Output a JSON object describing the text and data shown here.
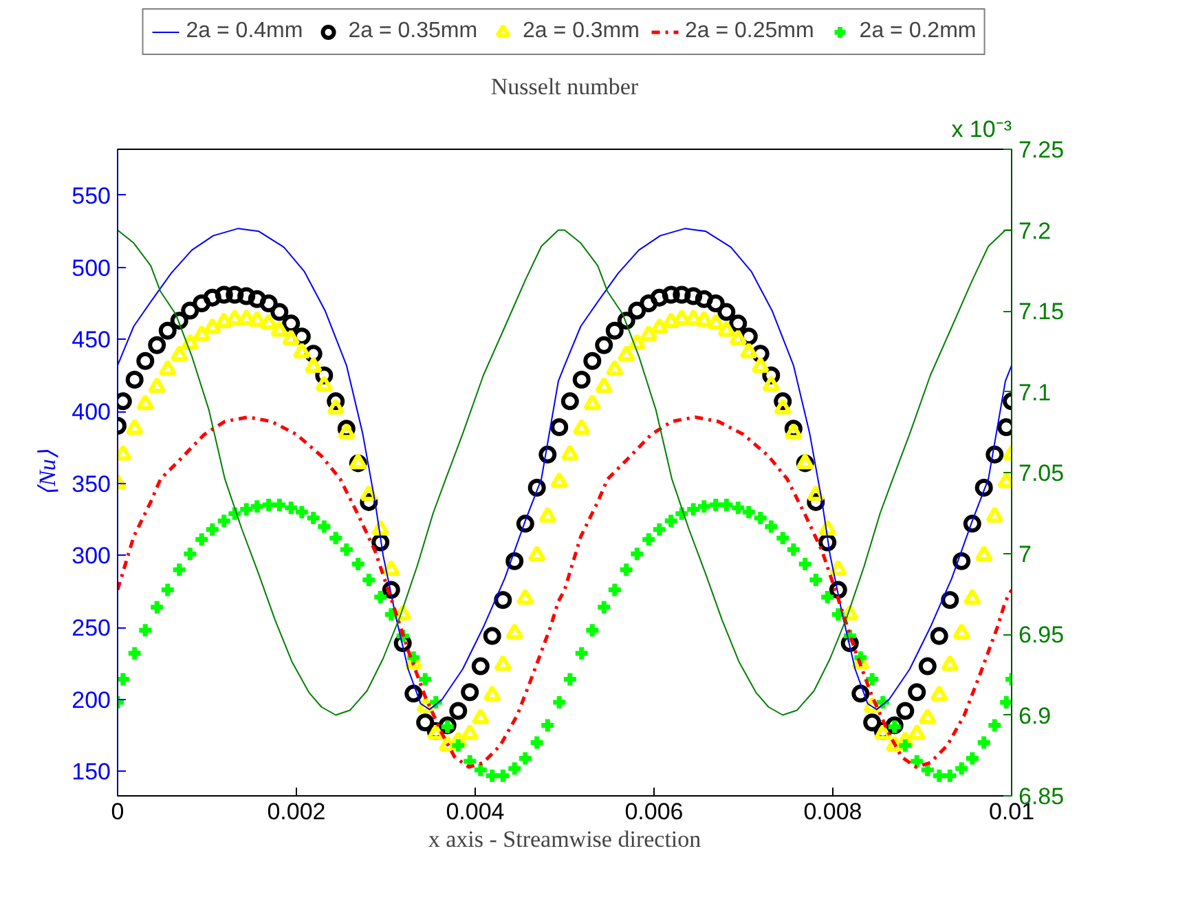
{
  "chart_data": {
    "type": "scatter",
    "title": "Nusselt number",
    "xlabel": "x axis - Streamwise direction",
    "ylabel": "⟨Nu⟩",
    "annotations": [
      "x 10⁻³"
    ],
    "xlim": [
      0,
      0.01
    ],
    "xticks": [
      0,
      0.002,
      0.004,
      0.006,
      0.008,
      0.01
    ],
    "ylim": [
      133,
      582
    ],
    "yticks": [
      150,
      200,
      250,
      300,
      350,
      400,
      450,
      500,
      550
    ],
    "y2lim": [
      6.85,
      7.25
    ],
    "y2ticks": [
      6.85,
      6.9,
      6.95,
      7,
      7.05,
      7.1,
      7.15,
      7.2,
      7.25
    ],
    "legend": "top",
    "grid": false,
    "x": [
      0,
      6e-05,
      0.00019,
      0.00031,
      0.00044,
      0.00056,
      0.00069,
      0.00081,
      0.00094,
      0.00106,
      0.00119,
      0.00131,
      0.00144,
      0.00156,
      0.00169,
      0.00181,
      0.00194,
      0.00206,
      0.00219,
      0.00231,
      0.00244,
      0.00256,
      0.00269,
      0.00281,
      0.00294,
      0.00306,
      0.00319,
      0.00331,
      0.00344,
      0.00356,
      0.00369,
      0.00381,
      0.00394,
      0.00406,
      0.00419,
      0.00431,
      0.00444,
      0.00456,
      0.00469,
      0.00481,
      0.00494,
      0.00506,
      0.00519,
      0.00531,
      0.00544,
      0.00556,
      0.00569,
      0.00581,
      0.00594,
      0.00606,
      0.00619,
      0.00631,
      0.00644,
      0.00656,
      0.00669,
      0.00681,
      0.00694,
      0.00706,
      0.00719,
      0.00731,
      0.00744,
      0.00756,
      0.00769,
      0.00781,
      0.00794,
      0.00806,
      0.00819,
      0.00831,
      0.00844,
      0.00856,
      0.00869,
      0.00881,
      0.00894,
      0.00906,
      0.00919,
      0.00931,
      0.00944,
      0.00956,
      0.00969,
      0.00981,
      0.00994,
      0.01
    ],
    "series": [
      {
        "name": "2a = 0.4mm",
        "type": "line",
        "line_style": "solid",
        "color": "#0000ff",
        "x": [
          0,
          0.00018,
          0.00037,
          0.0006,
          0.00083,
          0.00107,
          0.00135,
          0.00158,
          0.00186,
          0.00209,
          0.00232,
          0.00256,
          0.00274,
          0.00288,
          0.00297,
          0.00311,
          0.00325,
          0.00339,
          0.00349,
          0.00363,
          0.00386,
          0.00409,
          0.00433,
          0.00456,
          0.00474,
          0.00493,
          0.005,
          0.00518,
          0.00537,
          0.0056,
          0.00583,
          0.00607,
          0.00635,
          0.00658,
          0.00686,
          0.00709,
          0.00732,
          0.00756,
          0.00774,
          0.00788,
          0.00797,
          0.00811,
          0.00825,
          0.00839,
          0.00849,
          0.00863,
          0.00886,
          0.00909,
          0.00933,
          0.00956,
          0.00974,
          0.00993,
          0.01
        ],
        "values": [
          432,
          459,
          476,
          496,
          512,
          522,
          527,
          525,
          514,
          497,
          470,
          432,
          385,
          337,
          300,
          258,
          221,
          197,
          193,
          200,
          221,
          250,
          284,
          324,
          353,
          421,
          432,
          459,
          476,
          496,
          512,
          522,
          527,
          525,
          514,
          497,
          470,
          432,
          385,
          337,
          300,
          258,
          221,
          197,
          193,
          200,
          221,
          250,
          284,
          324,
          353,
          421,
          432
        ]
      },
      {
        "name": "2a = 0.35mm",
        "marker": "circle",
        "color": "#000000",
        "values": [
          390,
          407,
          422,
          435,
          446,
          456,
          463,
          470,
          475,
          479,
          481,
          481,
          480,
          478,
          475,
          469,
          461,
          452,
          440,
          425,
          407,
          388,
          364,
          337,
          309,
          276,
          239,
          204,
          184,
          178,
          182,
          192,
          205,
          223,
          244,
          269,
          296,
          322,
          347,
          370,
          389,
          407,
          422,
          435,
          446,
          456,
          463,
          470,
          475,
          479,
          481,
          481,
          480,
          478,
          475,
          469,
          461,
          452,
          440,
          425,
          407,
          388,
          364,
          337,
          309,
          276,
          239,
          204,
          184,
          178,
          182,
          192,
          205,
          223,
          244,
          269,
          296,
          322,
          347,
          370,
          389,
          407
        ]
      },
      {
        "name": "2a = 0.3mm",
        "marker": "triangle",
        "color": "#ffff00",
        "values": [
          350,
          370,
          388,
          405,
          417,
          429,
          439,
          447,
          453,
          458,
          462,
          464,
          464,
          463,
          461,
          456,
          450,
          441,
          431,
          418,
          402,
          385,
          364,
          342,
          318,
          290,
          259,
          225,
          195,
          176,
          168,
          171,
          176,
          187,
          203,
          224,
          246,
          270,
          300,
          327,
          351,
          370,
          388,
          405,
          417,
          429,
          439,
          447,
          453,
          458,
          462,
          464,
          464,
          463,
          461,
          456,
          450,
          441,
          431,
          418,
          402,
          385,
          364,
          342,
          318,
          290,
          259,
          225,
          195,
          176,
          168,
          171,
          176,
          187,
          203,
          224,
          246,
          270,
          300,
          327,
          351,
          370
        ]
      },
      {
        "name": "2a = 0.25mm",
        "type": "line",
        "line_style": "dashdot",
        "color": "#ff0000",
        "x": [
          0,
          0.00018,
          0.00037,
          0.00048,
          0.00069,
          0.00097,
          0.0012,
          0.00146,
          0.00172,
          0.002,
          0.00228,
          0.00249,
          0.0027,
          0.00288,
          0.00307,
          0.00325,
          0.00344,
          0.00363,
          0.00377,
          0.00393,
          0.00409,
          0.00428,
          0.00447,
          0.00465,
          0.00484,
          0.00493,
          0.005,
          0.00518,
          0.00537,
          0.00548,
          0.00569,
          0.00597,
          0.0062,
          0.00646,
          0.00672,
          0.007,
          0.00728,
          0.00749,
          0.0077,
          0.00788,
          0.00807,
          0.00825,
          0.00844,
          0.00863,
          0.00877,
          0.00893,
          0.00909,
          0.00928,
          0.00947,
          0.00965,
          0.00984,
          0.00993,
          0.01
        ],
        "values": [
          276,
          313,
          337,
          353,
          366,
          384,
          393,
          396,
          393,
          384,
          369,
          353,
          327,
          303,
          268,
          234,
          202,
          176,
          160,
          153,
          156,
          168,
          189,
          218,
          250,
          268,
          276,
          313,
          337,
          353,
          366,
          384,
          393,
          396,
          393,
          384,
          369,
          353,
          327,
          303,
          268,
          234,
          202,
          176,
          160,
          153,
          156,
          168,
          189,
          218,
          250,
          268,
          276
        ]
      },
      {
        "name": "2a = 0.2mm",
        "marker": "cross",
        "color": "#00ff00",
        "values": [
          198,
          214,
          232,
          248,
          264,
          276,
          290,
          301,
          311,
          318,
          324,
          329,
          332,
          334,
          335,
          335,
          333,
          330,
          326,
          320,
          312,
          304,
          294,
          283,
          271,
          259,
          244,
          229,
          214,
          198,
          181,
          168,
          157,
          151,
          147,
          147,
          152,
          159,
          170,
          182,
          198,
          214,
          232,
          248,
          264,
          276,
          290,
          301,
          311,
          318,
          324,
          329,
          332,
          334,
          335,
          335,
          333,
          330,
          326,
          320,
          312,
          304,
          294,
          283,
          271,
          259,
          244,
          229,
          214,
          198,
          181,
          168,
          157,
          151,
          147,
          147,
          152,
          159,
          170,
          182,
          198,
          214
        ]
      },
      {
        "type": "line",
        "line_style": "solid",
        "axis": "y2",
        "color": "#008000",
        "x": [
          0,
          0.00018,
          0.00037,
          0.00048,
          0.00065,
          0.00083,
          0.00102,
          0.0012,
          0.00139,
          0.00158,
          0.00176,
          0.00195,
          0.00214,
          0.00228,
          0.00244,
          0.0026,
          0.00279,
          0.00297,
          0.00316,
          0.00335,
          0.00353,
          0.00367,
          0.00386,
          0.00409,
          0.00433,
          0.00456,
          0.00474,
          0.00493,
          0.005,
          0.00518,
          0.00537,
          0.00548,
          0.00565,
          0.00583,
          0.00602,
          0.0062,
          0.00639,
          0.00658,
          0.00676,
          0.00695,
          0.00714,
          0.00728,
          0.00744,
          0.0076,
          0.00779,
          0.00797,
          0.00816,
          0.00835,
          0.00853,
          0.00867,
          0.00886,
          0.00909,
          0.00933,
          0.00956,
          0.00974,
          0.00993,
          0.01
        ],
        "values": [
          7.2,
          7.192,
          7.178,
          7.162,
          7.148,
          7.122,
          7.089,
          7.046,
          7.015,
          6.987,
          6.959,
          6.933,
          6.914,
          6.905,
          6.9,
          6.903,
          6.915,
          6.935,
          6.961,
          6.992,
          7.025,
          7.046,
          7.074,
          7.11,
          7.14,
          7.169,
          7.19,
          7.2,
          7.2,
          7.192,
          7.178,
          7.162,
          7.148,
          7.122,
          7.089,
          7.046,
          7.015,
          6.987,
          6.959,
          6.933,
          6.914,
          6.905,
          6.9,
          6.903,
          6.915,
          6.935,
          6.961,
          6.992,
          7.025,
          7.046,
          7.074,
          7.11,
          7.14,
          7.169,
          7.19,
          7.2,
          7.2
        ]
      }
    ]
  }
}
